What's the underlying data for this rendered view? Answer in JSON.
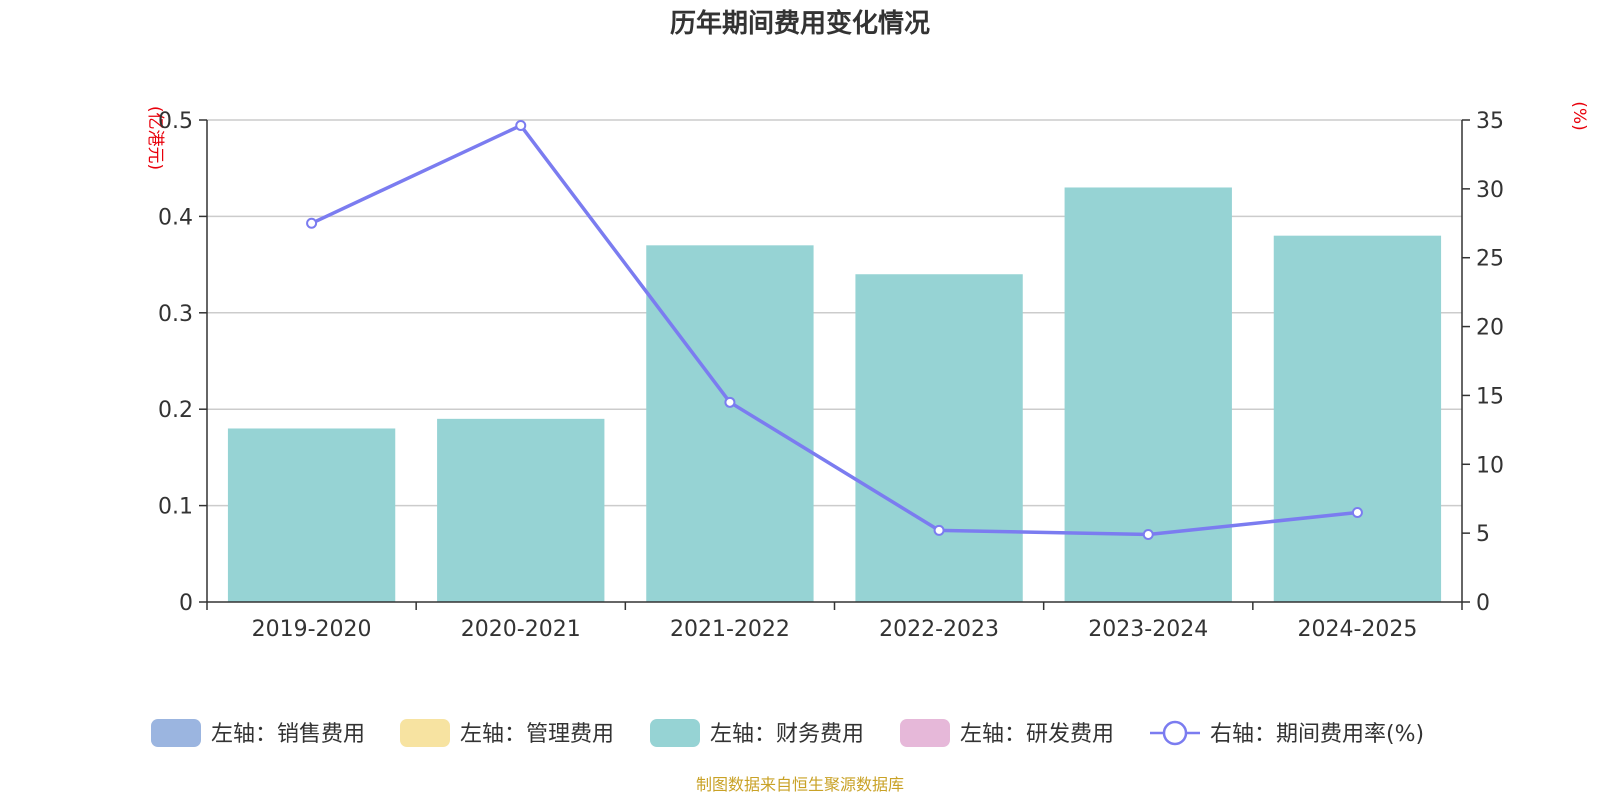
{
  "chart_data": {
    "type": "bar",
    "title": "历年期间费用变化情况",
    "categories": [
      "2019-2020",
      "2020-2021",
      "2021-2022",
      "2022-2023",
      "2023-2024",
      "2024-2025"
    ],
    "y_left": {
      "unit": "(亿港元)",
      "min": 0,
      "max": 0.5,
      "ticks": [
        "0",
        "0.1",
        "0.2",
        "0.3",
        "0.4",
        "0.5"
      ]
    },
    "y_right": {
      "unit": "(%)",
      "min": 0,
      "max": 35,
      "ticks": [
        "0",
        "5",
        "10",
        "15",
        "20",
        "25",
        "30",
        "35"
      ]
    },
    "series": [
      {
        "name": "左轴：销售费用",
        "kind": "bar",
        "axis": "left",
        "color": "#9bb5e0",
        "values": [
          0,
          0,
          0,
          0,
          0,
          0
        ]
      },
      {
        "name": "左轴：管理费用",
        "kind": "bar",
        "axis": "left",
        "color": "#f7e3a1",
        "values": [
          0,
          0,
          0,
          0,
          0,
          0
        ]
      },
      {
        "name": "左轴：财务费用",
        "kind": "bar",
        "axis": "left",
        "color": "#96d3d4",
        "values": [
          0.18,
          0.19,
          0.37,
          0.34,
          0.43,
          0.38
        ]
      },
      {
        "name": "左轴：研发费用",
        "kind": "bar",
        "axis": "left",
        "color": "#e6b8d9",
        "values": [
          0,
          0,
          0,
          0,
          0,
          0
        ]
      },
      {
        "name": "右轴：期间费用率(%)",
        "kind": "line",
        "axis": "right",
        "color": "#7b7cf0",
        "values": [
          27.5,
          34.6,
          14.5,
          5.2,
          4.9,
          6.5
        ]
      }
    ],
    "grid": true,
    "legend_position": "bottom"
  },
  "source_note": "制图数据来自恒生聚源数据库"
}
